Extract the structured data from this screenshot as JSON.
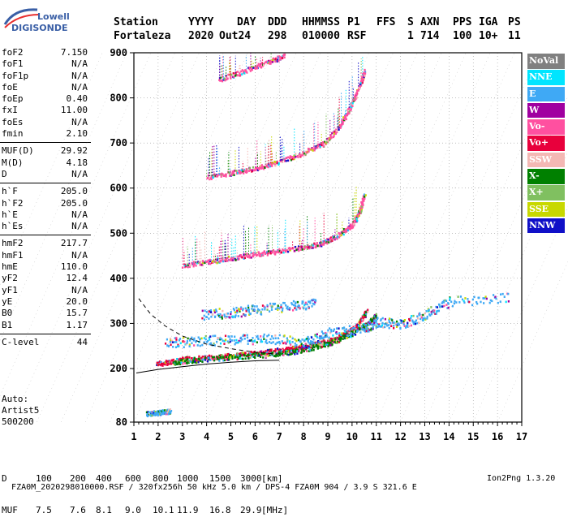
{
  "logo": {
    "line1": "Lowell",
    "line2": "DIGISONDE"
  },
  "header": {
    "columns": [
      "Station",
      "YYYY",
      "DAY",
      "DDD",
      "HHMMSS",
      "P1",
      "FFS",
      "S",
      "AXN",
      "PPS",
      "IGA",
      "PS"
    ],
    "values": [
      "Fortaleza",
      "2020",
      "Out24",
      "298",
      "010000",
      "RSF",
      "",
      "1",
      "714",
      "100",
      "10+",
      "11"
    ]
  },
  "params_group1": [
    {
      "label": "foF2",
      "value": "7.150"
    },
    {
      "label": "foF1",
      "value": "N/A"
    },
    {
      "label": "foF1p",
      "value": "N/A"
    },
    {
      "label": "foE",
      "value": "N/A"
    },
    {
      "label": "foEp",
      "value": "0.40"
    },
    {
      "label": "fxI",
      "value": "11.00"
    },
    {
      "label": "foEs",
      "value": "N/A"
    },
    {
      "label": "fmin",
      "value": "2.10"
    }
  ],
  "params_group2": [
    {
      "label": "MUF(D)",
      "value": "29.92"
    },
    {
      "label": "M(D)",
      "value": "4.18"
    },
    {
      "label": "D",
      "value": "N/A"
    }
  ],
  "params_group3": [
    {
      "label": "h`F",
      "value": "205.0"
    },
    {
      "label": "h`F2",
      "value": "205.0"
    },
    {
      "label": "h`E",
      "value": "N/A"
    },
    {
      "label": "h`Es",
      "value": "N/A"
    }
  ],
  "params_group4": [
    {
      "label": "hmF2",
      "value": "217.7"
    },
    {
      "label": "hmF1",
      "value": "N/A"
    },
    {
      "label": "hmE",
      "value": "110.0"
    },
    {
      "label": "yF2",
      "value": "12.4"
    },
    {
      "label": "yF1",
      "value": "N/A"
    },
    {
      "label": "yE",
      "value": "20.0"
    },
    {
      "label": "B0",
      "value": "15.7"
    },
    {
      "label": "B1",
      "value": "1.17"
    }
  ],
  "params_group5": [
    {
      "label": "C-level",
      "value": "44"
    }
  ],
  "autoscaling": {
    "line1": "Auto:",
    "line2": "Artist5",
    "line3": "500200"
  },
  "legend": [
    {
      "label": "NoVal",
      "bg": "#808080",
      "fg": "#ffffff"
    },
    {
      "label": "NNE",
      "bg": "#00e5ff",
      "fg": "#ffffff"
    },
    {
      "label": "E",
      "bg": "#3fa9f5",
      "fg": "#ffffff"
    },
    {
      "label": "W",
      "bg": "#a000a0",
      "fg": "#ffffff"
    },
    {
      "label": "Vo-",
      "bg": "#ff50a0",
      "fg": "#ffffff"
    },
    {
      "label": "Vo+",
      "bg": "#e8003c",
      "fg": "#ffffff"
    },
    {
      "label": "SSW",
      "bg": "#f4b8b4",
      "fg": "#ffffff"
    },
    {
      "label": "X-",
      "bg": "#008000",
      "fg": "#ffffff"
    },
    {
      "label": "X+",
      "bg": "#80c060",
      "fg": "#ffffff"
    },
    {
      "label": "SSE",
      "bg": "#c8d800",
      "fg": "#ffffff"
    },
    {
      "label": "NNW",
      "bg": "#1010c8",
      "fg": "#ffffff"
    }
  ],
  "muf_table": {
    "d_label": "D",
    "d_values": [
      "100",
      "200",
      "400",
      "600",
      "800",
      "1000",
      "1500",
      "3000"
    ],
    "d_unit": "[km]",
    "muf_label": "MUF",
    "muf_values": [
      "7.5",
      "7.6",
      "8.1",
      "9.0",
      "10.1",
      "11.9",
      "16.8",
      "29.9"
    ],
    "muf_unit": "[MHz]"
  },
  "footer": {
    "text": "FZA0M_2020298010000.RSF / 320fx256h 50 kHz 5.0 km / DPS-4 FZA0M 904 / 3.9 S 321.6 E",
    "version": "Ion2Png 1.3.20"
  },
  "chart_data": {
    "type": "scatter",
    "xlim": [
      1,
      17
    ],
    "ylim": [
      80,
      900
    ],
    "x_ticks": [
      1,
      2,
      3,
      4,
      5,
      6,
      7,
      8,
      9,
      10,
      11,
      12,
      13,
      14,
      15,
      16,
      17
    ],
    "y_ticks": [
      80,
      200,
      300,
      400,
      500,
      600,
      700,
      800,
      900
    ],
    "grid": true,
    "echo_traces": [
      {
        "name": "F2 first hop O-trace",
        "color": "#e8003c",
        "points": [
          [
            1.9,
            212
          ],
          [
            2.5,
            216
          ],
          [
            3.0,
            222
          ],
          [
            4.0,
            226
          ],
          [
            5.0,
            230
          ],
          [
            6.0,
            236
          ],
          [
            7.0,
            242
          ],
          [
            7.8,
            248
          ],
          [
            8.5,
            256
          ],
          [
            9.0,
            262
          ],
          [
            9.5,
            272
          ],
          [
            10.0,
            288
          ],
          [
            10.3,
            305
          ],
          [
            10.6,
            330
          ]
        ]
      },
      {
        "name": "F2 first hop X-trace",
        "color": "#008000",
        "points": [
          [
            2.6,
            215
          ],
          [
            3.5,
            220
          ],
          [
            5.0,
            226
          ],
          [
            6.5,
            232
          ],
          [
            7.5,
            238
          ],
          [
            8.5,
            250
          ],
          [
            9.3,
            262
          ],
          [
            10.0,
            280
          ],
          [
            10.6,
            300
          ],
          [
            11.0,
            320
          ]
        ]
      },
      {
        "name": "F2 spread band",
        "color": "#3fa9f5",
        "points": [
          [
            2.3,
            258
          ],
          [
            3.5,
            262
          ],
          [
            5.0,
            266
          ],
          [
            6.5,
            268
          ],
          [
            8.0,
            260
          ],
          [
            9.0,
            280
          ],
          [
            10.5,
            290
          ],
          [
            11.0,
            305
          ],
          [
            12.0,
            300
          ],
          [
            13.0,
            320
          ],
          [
            14.0,
            350
          ],
          [
            16.5,
            360
          ]
        ]
      },
      {
        "name": "second hop",
        "color": "#ff50a0",
        "points": [
          [
            3.0,
            430
          ],
          [
            4.0,
            438
          ],
          [
            5.0,
            446
          ],
          [
            6.0,
            455
          ],
          [
            7.0,
            462
          ],
          [
            8.0,
            470
          ],
          [
            8.8,
            480
          ],
          [
            9.5,
            500
          ],
          [
            10.0,
            520
          ],
          [
            10.3,
            550
          ],
          [
            10.5,
            590
          ]
        ]
      },
      {
        "name": "third hop",
        "color": "#ff50a0",
        "points": [
          [
            4.0,
            625
          ],
          [
            5.0,
            635
          ],
          [
            6.0,
            645
          ],
          [
            7.0,
            660
          ],
          [
            8.0,
            680
          ],
          [
            8.8,
            700
          ],
          [
            9.5,
            740
          ],
          [
            9.9,
            780
          ],
          [
            10.3,
            830
          ],
          [
            10.5,
            860
          ]
        ]
      },
      {
        "name": "fourth hop",
        "color": "#ff50a0",
        "points": [
          [
            4.5,
            842
          ],
          [
            5.5,
            860
          ],
          [
            6.5,
            880
          ],
          [
            7.2,
            895
          ]
        ]
      },
      {
        "name": "low echo",
        "color": "#3fa9f5",
        "points": [
          [
            1.5,
            100
          ],
          [
            1.8,
            102
          ],
          [
            2.2,
            104
          ],
          [
            2.5,
            106
          ]
        ]
      },
      {
        "name": "spread F upper",
        "color": "#3fa9f5",
        "points": [
          [
            3.8,
            320
          ],
          [
            5.0,
            326
          ],
          [
            6.0,
            332
          ],
          [
            7.5,
            340
          ],
          [
            8.5,
            348
          ]
        ]
      }
    ],
    "profile_curve": [
      [
        1.1,
        190
      ],
      [
        2,
        198
      ],
      [
        3,
        204
      ],
      [
        4,
        210
      ],
      [
        5,
        214
      ],
      [
        6,
        217
      ],
      [
        7,
        218.5
      ]
    ],
    "profile_dashed": [
      [
        1.2,
        355
      ],
      [
        1.7,
        320
      ],
      [
        2.3,
        294
      ],
      [
        3,
        272
      ],
      [
        4,
        254
      ],
      [
        5,
        244
      ],
      [
        6,
        236
      ],
      [
        7,
        232
      ]
    ]
  }
}
